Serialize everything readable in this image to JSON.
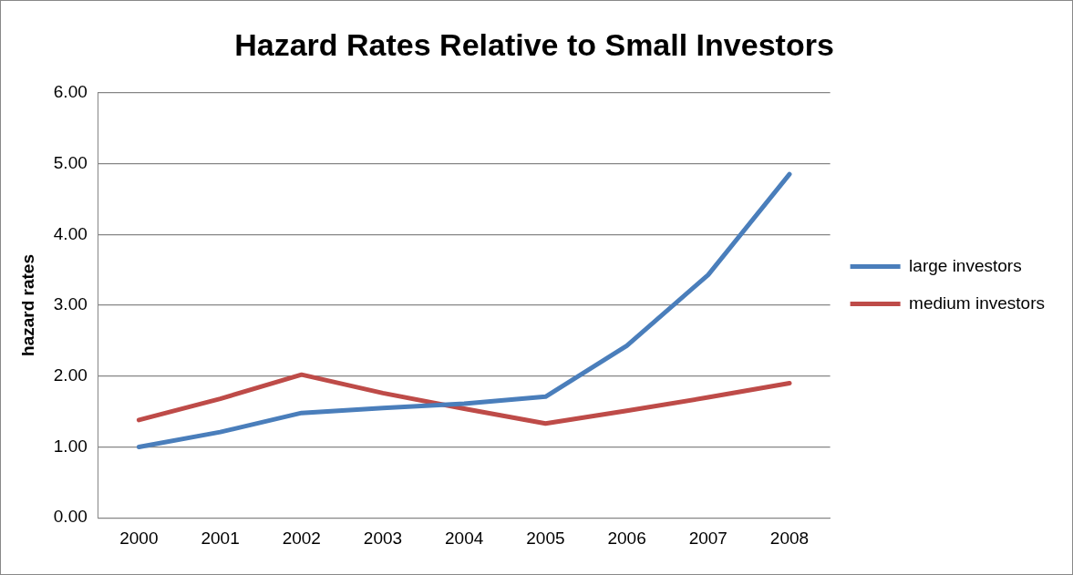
{
  "chart_data": {
    "type": "line",
    "title": "Hazard Rates Relative to Small Investors",
    "ylabel": "hazard rates",
    "categories": [
      "2000",
      "2001",
      "2002",
      "2003",
      "2004",
      "2005",
      "2006",
      "2007",
      "2008"
    ],
    "series": [
      {
        "name": "large investors",
        "color": "#4a7ebb",
        "values": [
          1.0,
          1.21,
          1.48,
          1.55,
          1.61,
          1.71,
          2.43,
          3.43,
          4.85
        ]
      },
      {
        "name": "medium investors",
        "color": "#be4b48",
        "values": [
          1.38,
          1.68,
          2.02,
          1.76,
          1.54,
          1.33,
          1.51,
          1.7,
          1.9
        ]
      }
    ],
    "ylim": [
      0,
      6
    ],
    "yticks": [
      {
        "value": 0,
        "label": "0.00"
      },
      {
        "value": 1,
        "label": "1.00"
      },
      {
        "value": 2,
        "label": "2.00"
      },
      {
        "value": 3,
        "label": "3.00"
      },
      {
        "value": 4,
        "label": "4.00"
      },
      {
        "value": 5,
        "label": "5.00"
      },
      {
        "value": 6,
        "label": "6.00"
      }
    ],
    "grid": "y",
    "legend": "right",
    "marker": "none",
    "line_style": "solid"
  }
}
